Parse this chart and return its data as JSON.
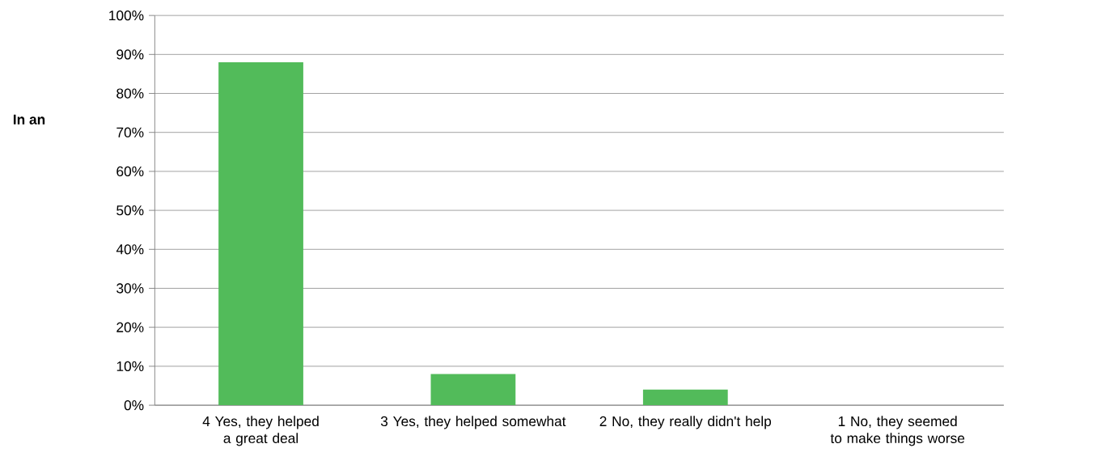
{
  "chart_data": {
    "type": "bar",
    "ylabel": "**In an**",
    "categories": [
      "4 Yes, they helped a great deal",
      "3 Yes, they helped somewhat",
      "2 No, they really didn't help",
      "1 No, they seemed to make things worse"
    ],
    "values": [
      88,
      8,
      4,
      0
    ],
    "color": "#52bb5a",
    "ylim": [
      0,
      100
    ],
    "yticks": [
      {
        "value": 0,
        "label": "0%"
      },
      {
        "value": 10,
        "label": "10%"
      },
      {
        "value": 20,
        "label": "20%"
      },
      {
        "value": 30,
        "label": "30%"
      },
      {
        "value": 40,
        "label": "40%"
      },
      {
        "value": 50,
        "label": "50%"
      },
      {
        "value": 60,
        "label": "60%"
      },
      {
        "value": 70,
        "label": "70%"
      },
      {
        "value": 80,
        "label": "80%"
      },
      {
        "value": 90,
        "label": "90%"
      },
      {
        "value": 100,
        "label": "100%"
      }
    ],
    "grid": "y"
  }
}
